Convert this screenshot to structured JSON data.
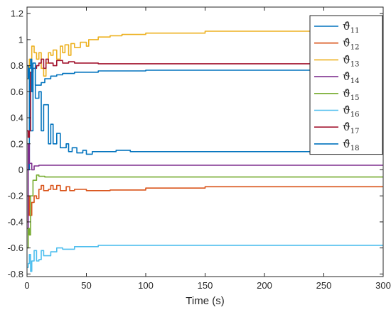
{
  "chart_data": {
    "type": "line",
    "title": "",
    "xlabel": "Time (s)",
    "ylabel": "",
    "xlim": [
      0,
      300
    ],
    "ylim": [
      -0.82,
      1.25
    ],
    "xticks": [
      0,
      50,
      100,
      150,
      200,
      250,
      300
    ],
    "yticks": [
      -0.8,
      -0.6,
      -0.4,
      -0.2,
      0,
      0.2,
      0.4,
      0.6,
      0.8,
      1,
      1.2
    ],
    "xtick_labels": [
      "0",
      "50",
      "100",
      "150",
      "200",
      "250",
      "300"
    ],
    "ytick_labels": [
      "-0.8",
      "-0.6",
      "-0.4",
      "-0.2",
      "0",
      "0.2",
      "0.4",
      "0.6",
      "0.8",
      "1",
      "1.2"
    ],
    "grid": false,
    "legend_position": "top-right",
    "series": [
      {
        "name": "ϑ̂11",
        "base": "ϑ̂",
        "sub": "11",
        "color": "#0072BD",
        "points": [
          [
            0,
            0.0
          ],
          [
            2,
            0.75
          ],
          [
            3,
            0.3
          ],
          [
            5,
            0.82
          ],
          [
            7,
            0.55
          ],
          [
            10,
            0.6
          ],
          [
            12,
            0.3
          ],
          [
            14,
            0.5
          ],
          [
            17,
            0.5
          ],
          [
            18,
            0.2
          ],
          [
            20,
            0.35
          ],
          [
            22,
            0.2
          ],
          [
            25,
            0.28
          ],
          [
            28,
            0.17
          ],
          [
            33,
            0.2
          ],
          [
            35,
            0.14
          ],
          [
            38,
            0.17
          ],
          [
            42,
            0.13
          ],
          [
            47,
            0.15
          ],
          [
            50,
            0.12
          ],
          [
            55,
            0.14
          ],
          [
            60,
            0.14
          ],
          [
            75,
            0.15
          ],
          [
            87,
            0.14
          ],
          [
            100,
            0.14
          ],
          [
            150,
            0.14
          ],
          [
            200,
            0.14
          ],
          [
            300,
            0.14
          ]
        ]
      },
      {
        "name": "ϑ̂12",
        "base": "ϑ̂",
        "sub": "12",
        "color": "#D95319",
        "points": [
          [
            0,
            -0.4
          ],
          [
            1,
            -0.2
          ],
          [
            2,
            -0.35
          ],
          [
            4,
            -0.25
          ],
          [
            6,
            -0.2
          ],
          [
            8,
            -0.22
          ],
          [
            10,
            -0.15
          ],
          [
            12,
            -0.12
          ],
          [
            14,
            -0.16
          ],
          [
            18,
            -0.15
          ],
          [
            20,
            -0.12
          ],
          [
            22,
            -0.15
          ],
          [
            25,
            -0.12
          ],
          [
            28,
            -0.16
          ],
          [
            33,
            -0.13
          ],
          [
            36,
            -0.16
          ],
          [
            40,
            -0.15
          ],
          [
            45,
            -0.15
          ],
          [
            50,
            -0.16
          ],
          [
            55,
            -0.16
          ],
          [
            70,
            -0.155
          ],
          [
            100,
            -0.14
          ],
          [
            150,
            -0.13
          ],
          [
            200,
            -0.13
          ],
          [
            300,
            -0.13
          ]
        ]
      },
      {
        "name": "ϑ̂13",
        "base": "ϑ̂",
        "sub": "13",
        "color": "#EDB120",
        "points": [
          [
            0,
            0.7
          ],
          [
            2,
            0.85
          ],
          [
            4,
            0.95
          ],
          [
            6,
            0.9
          ],
          [
            8,
            0.85
          ],
          [
            10,
            0.9
          ],
          [
            12,
            0.78
          ],
          [
            14,
            0.72
          ],
          [
            16,
            0.82
          ],
          [
            18,
            0.9
          ],
          [
            20,
            0.88
          ],
          [
            22,
            0.92
          ],
          [
            25,
            0.85
          ],
          [
            28,
            0.95
          ],
          [
            30,
            0.9
          ],
          [
            32,
            0.96
          ],
          [
            35,
            0.88
          ],
          [
            37,
            0.97
          ],
          [
            40,
            0.94
          ],
          [
            45,
            0.98
          ],
          [
            50,
            0.95
          ],
          [
            52,
            1.0
          ],
          [
            60,
            1.02
          ],
          [
            70,
            1.03
          ],
          [
            80,
            1.04
          ],
          [
            100,
            1.05
          ],
          [
            150,
            1.065
          ],
          [
            200,
            1.065
          ],
          [
            300,
            1.065
          ]
        ]
      },
      {
        "name": "ϑ̂14",
        "base": "ϑ̂",
        "sub": "14",
        "color": "#7E2F8E",
        "points": [
          [
            0,
            -0.45
          ],
          [
            1,
            0.2
          ],
          [
            2,
            0.05
          ],
          [
            4,
            0.0
          ],
          [
            6,
            0.03
          ],
          [
            10,
            0.035
          ],
          [
            20,
            0.035
          ],
          [
            50,
            0.035
          ],
          [
            100,
            0.035
          ],
          [
            200,
            0.035
          ],
          [
            300,
            0.035
          ]
        ]
      },
      {
        "name": "ϑ̂15",
        "base": "ϑ̂",
        "sub": "15",
        "color": "#77AC30",
        "points": [
          [
            0,
            -0.6
          ],
          [
            1,
            -0.45
          ],
          [
            2,
            -0.5
          ],
          [
            3,
            -0.2
          ],
          [
            5,
            -0.08
          ],
          [
            8,
            -0.04
          ],
          [
            10,
            -0.05
          ],
          [
            15,
            -0.055
          ],
          [
            30,
            -0.055
          ],
          [
            100,
            -0.055
          ],
          [
            200,
            -0.055
          ],
          [
            300,
            -0.055
          ]
        ]
      },
      {
        "name": "ϑ̂16",
        "base": "ϑ̂",
        "sub": "16",
        "color": "#4DBEEE",
        "points": [
          [
            0,
            -0.75
          ],
          [
            1,
            -0.72
          ],
          [
            2,
            -0.65
          ],
          [
            3,
            -0.78
          ],
          [
            4,
            -0.7
          ],
          [
            6,
            -0.62
          ],
          [
            8,
            -0.7
          ],
          [
            10,
            -0.69
          ],
          [
            12,
            -0.62
          ],
          [
            14,
            -0.66
          ],
          [
            20,
            -0.63
          ],
          [
            25,
            -0.6
          ],
          [
            30,
            -0.61
          ],
          [
            40,
            -0.59
          ],
          [
            60,
            -0.58
          ],
          [
            100,
            -0.58
          ],
          [
            200,
            -0.58
          ],
          [
            300,
            -0.58
          ]
        ]
      },
      {
        "name": "ϑ̂17",
        "base": "ϑ̂",
        "sub": "17",
        "color": "#A2142F",
        "points": [
          [
            0,
            0.3
          ],
          [
            1,
            0.25
          ],
          [
            2,
            0.3
          ],
          [
            3,
            0.75
          ],
          [
            5,
            0.78
          ],
          [
            8,
            0.8
          ],
          [
            10,
            0.82
          ],
          [
            12,
            0.85
          ],
          [
            14,
            0.78
          ],
          [
            16,
            0.85
          ],
          [
            18,
            0.82
          ],
          [
            22,
            0.8
          ],
          [
            25,
            0.84
          ],
          [
            30,
            0.82
          ],
          [
            35,
            0.83
          ],
          [
            40,
            0.82
          ],
          [
            60,
            0.815
          ],
          [
            100,
            0.815
          ],
          [
            300,
            0.815
          ]
        ]
      },
      {
        "name": "ϑ̂18",
        "base": "ϑ̂",
        "sub": "18",
        "color": "#0072BD",
        "points": [
          [
            0,
            0.8
          ],
          [
            1,
            0.7
          ],
          [
            2,
            0.78
          ],
          [
            3,
            0.85
          ],
          [
            4,
            0.6
          ],
          [
            5,
            0.78
          ],
          [
            7,
            0.65
          ],
          [
            10,
            0.65
          ],
          [
            12,
            0.67
          ],
          [
            15,
            0.7
          ],
          [
            20,
            0.72
          ],
          [
            25,
            0.73
          ],
          [
            30,
            0.74
          ],
          [
            40,
            0.75
          ],
          [
            60,
            0.76
          ],
          [
            100,
            0.765
          ],
          [
            300,
            0.765
          ]
        ]
      }
    ]
  }
}
